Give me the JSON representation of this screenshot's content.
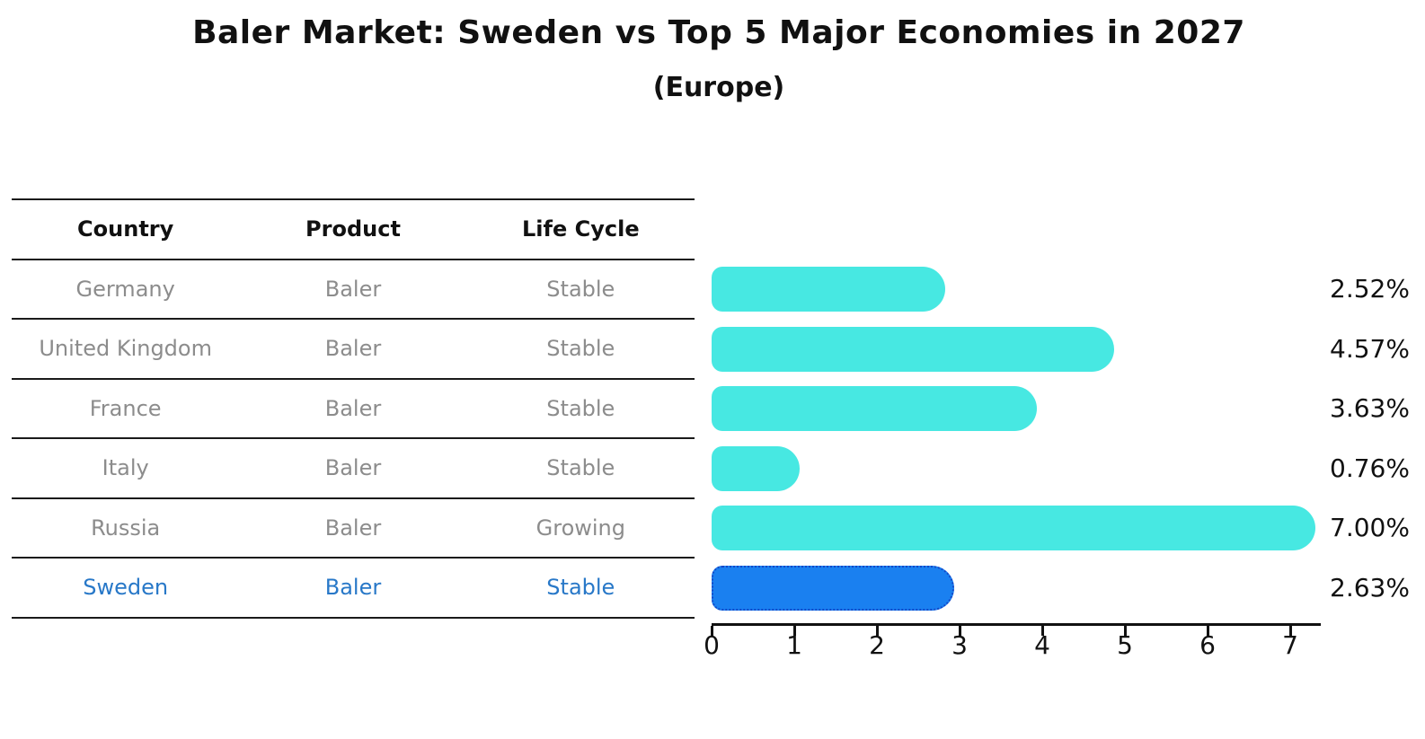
{
  "title": "Baler Market: Sweden vs Top 5 Major Economies in 2027",
  "subtitle": "(Europe)",
  "table": {
    "headers": [
      "Country",
      "Product",
      "Life Cycle"
    ],
    "rows": [
      {
        "country": "Germany",
        "product": "Baler",
        "life_cycle": "Stable",
        "highlight": false
      },
      {
        "country": "United Kingdom",
        "product": "Baler",
        "life_cycle": "Stable",
        "highlight": false
      },
      {
        "country": "France",
        "product": "Baler",
        "life_cycle": "Stable",
        "highlight": false
      },
      {
        "country": "Italy",
        "product": "Baler",
        "life_cycle": "Stable",
        "highlight": false
      },
      {
        "country": "Russia",
        "product": "Baler",
        "life_cycle": "Growing",
        "highlight": false
      },
      {
        "country": "Sweden",
        "product": "Baler",
        "life_cycle": "Stable",
        "highlight": true
      }
    ]
  },
  "chart_data": {
    "type": "bar",
    "orientation": "horizontal",
    "title": "Baler Market: Sweden vs Top 5 Major Economies in 2027",
    "subtitle": "(Europe)",
    "categories": [
      "Germany",
      "United Kingdom",
      "France",
      "Italy",
      "Russia",
      "Sweden"
    ],
    "values": [
      2.52,
      4.57,
      3.63,
      0.76,
      7.0,
      2.63
    ],
    "value_labels": [
      "2.52%",
      "4.57%",
      "3.63%",
      "0.76%",
      "7.00%",
      "2.63%"
    ],
    "xticks": [
      0,
      1,
      2,
      3,
      4,
      5,
      6,
      7
    ],
    "xlim": [
      0,
      7.36
    ],
    "grid": false,
    "legend": false,
    "highlight_index": 5,
    "colors": {
      "bar": "#47E8E2",
      "highlight_bar": "#1A80F0",
      "highlight_border": "#1448C8",
      "axis": "#111111",
      "value_label_text": "#111111",
      "table_text_muted": "#8C8C8C",
      "table_text_highlight": "#2878C8"
    }
  }
}
